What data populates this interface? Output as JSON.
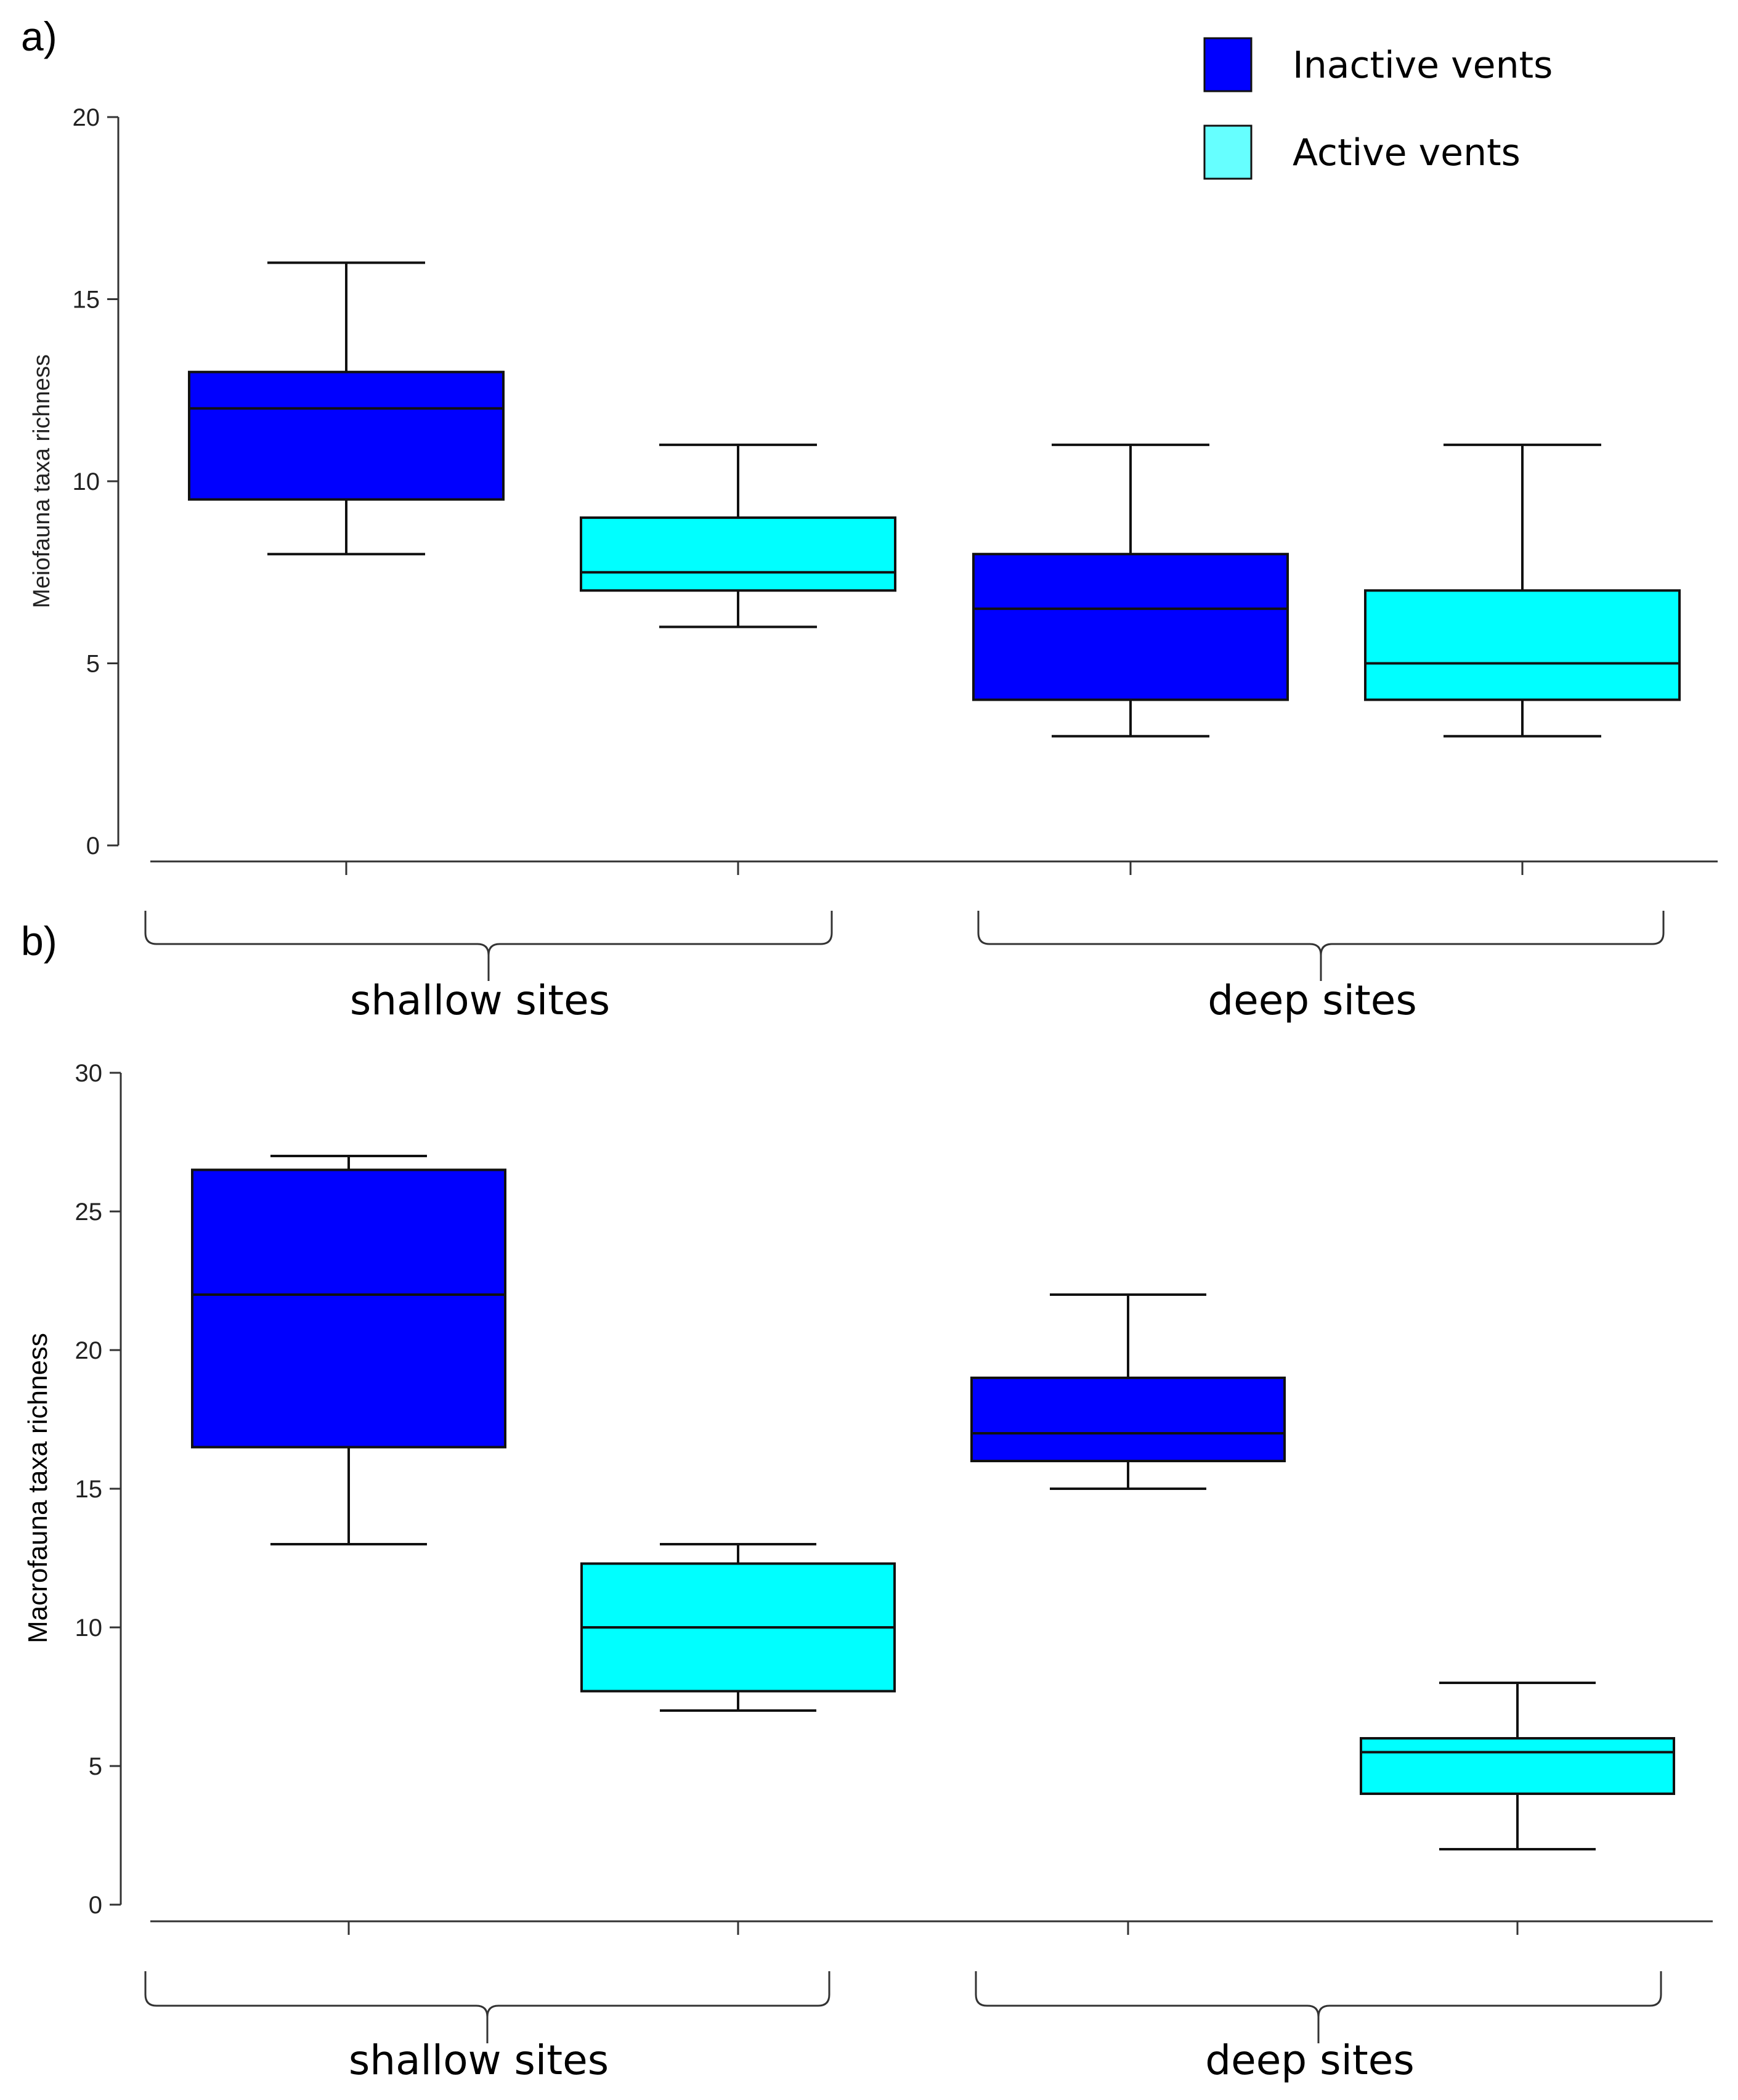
{
  "legend": {
    "items": [
      {
        "label": "Inactive vents",
        "color": "#0000FF"
      },
      {
        "label": "Active vents",
        "color": "#66FFFF"
      }
    ]
  },
  "chart_data": [
    {
      "panel": "a)",
      "type": "box",
      "ylabel": "Meiofauna taxa richness",
      "ylim": [
        0,
        20
      ],
      "yticks": [
        0,
        5,
        10,
        15,
        20
      ],
      "groups": [
        "shallow sites",
        "deep sites"
      ],
      "series": [
        {
          "name": "Inactive vents",
          "group": "shallow sites",
          "color": "#0000FF",
          "min": 8,
          "q1": 9.5,
          "median": 12,
          "q3": 13,
          "max": 16
        },
        {
          "name": "Active vents",
          "group": "shallow sites",
          "color": "#00FFFF",
          "min": 6,
          "q1": 7,
          "median": 7.5,
          "q3": 9,
          "max": 11
        },
        {
          "name": "Inactive vents",
          "group": "deep sites",
          "color": "#0000FF",
          "min": 3,
          "q1": 4,
          "median": 6.5,
          "q3": 8,
          "max": 11
        },
        {
          "name": "Active vents",
          "group": "deep sites",
          "color": "#00FFFF",
          "min": 3,
          "q1": 4,
          "median": 5,
          "q3": 7,
          "max": 11
        }
      ]
    },
    {
      "panel": "b)",
      "type": "box",
      "ylabel": "Macrofauna taxa richness",
      "ylim": [
        0,
        30
      ],
      "yticks": [
        0,
        5,
        10,
        15,
        20,
        25,
        30
      ],
      "groups": [
        "shallow sites",
        "deep sites"
      ],
      "series": [
        {
          "name": "Inactive vents",
          "group": "shallow sites",
          "color": "#0000FF",
          "min": 13,
          "q1": 16.5,
          "median": 22,
          "q3": 26.5,
          "max": 27
        },
        {
          "name": "Active vents",
          "group": "shallow sites",
          "color": "#00FFFF",
          "min": 7,
          "q1": 7.7,
          "median": 10,
          "q3": 12.3,
          "max": 13
        },
        {
          "name": "Inactive vents",
          "group": "deep sites",
          "color": "#0000FF",
          "min": 15,
          "q1": 16,
          "median": 17,
          "q3": 19,
          "max": 22
        },
        {
          "name": "Active vents",
          "group": "deep sites",
          "color": "#00FFFF",
          "min": 2,
          "q1": 4,
          "median": 5.5,
          "q3": 6,
          "max": 8
        }
      ]
    }
  ]
}
